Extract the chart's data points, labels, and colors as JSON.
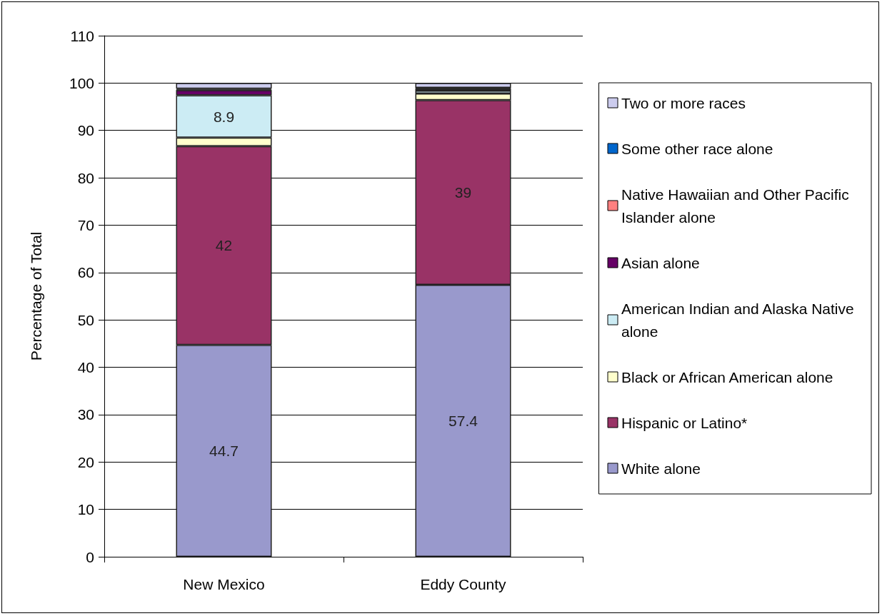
{
  "chart_data": {
    "type": "bar",
    "stacked": true,
    "ylabel": "Percentage of Total",
    "categories": [
      "New Mexico",
      "Eddy County"
    ],
    "ylim": [
      0,
      110
    ],
    "yticks": [
      0,
      10,
      20,
      30,
      40,
      50,
      60,
      70,
      80,
      90,
      100,
      110
    ],
    "grid": "y",
    "legend": "right",
    "series": [
      {
        "name": "White alone",
        "color": "#9999cc",
        "values": [
          44.7,
          57.4
        ],
        "value_labels": [
          "44.7",
          "57.4"
        ]
      },
      {
        "name": "Hispanic or Latino*",
        "color": "#993366",
        "values": [
          42,
          39
        ],
        "value_labels": [
          "42",
          "39"
        ]
      },
      {
        "name": "Black or African American alone",
        "color": "#ffffcc",
        "values": [
          1.8,
          1.4
        ]
      },
      {
        "name": "American Indian and Alaska Native alone",
        "color": "#ccecf4",
        "values": [
          8.9,
          0.6
        ],
        "value_labels": [
          "8.9",
          null
        ]
      },
      {
        "name": "Asian alone",
        "color": "#660066",
        "values": [
          1.1,
          0.4
        ]
      },
      {
        "name": "Native Hawaiian and Other Pacific Islander alone",
        "color": "#ff8080",
        "values": [
          0.1,
          0.1
        ]
      },
      {
        "name": "Some other race alone",
        "color": "#0066cc",
        "values": [
          0.2,
          0.1
        ]
      },
      {
        "name": "Two or more races",
        "color": "#ccccee",
        "values": [
          1.2,
          1.0
        ]
      }
    ]
  }
}
